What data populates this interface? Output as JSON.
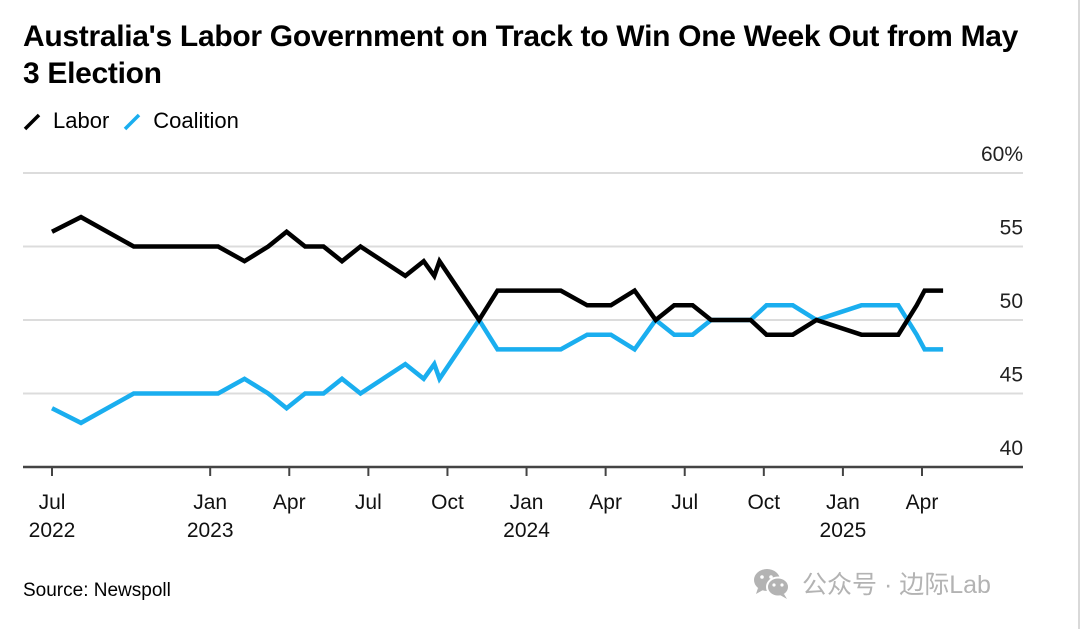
{
  "title": "Australia's Labor Government on Track to Win One Week Out from May 3 Election",
  "legend": [
    {
      "label": "Labor",
      "color": "#000000"
    },
    {
      "label": "Coalition",
      "color": "#1aaeef"
    }
  ],
  "source": "Source: Newspoll",
  "watermark": "公众号 · 边际Lab",
  "chart_data": {
    "type": "line",
    "title": "Australia's Labor Government on Track to Win One Week Out from May 3 Election",
    "xlabel": "",
    "ylabel": "",
    "x_unit": "months since Jul 2022",
    "ylim": [
      40,
      60
    ],
    "y_ticks": [
      {
        "value": 60,
        "label": "60%"
      },
      {
        "value": 55,
        "label": "55"
      },
      {
        "value": 50,
        "label": "50"
      },
      {
        "value": 45,
        "label": "45"
      },
      {
        "value": 40,
        "label": "40"
      }
    ],
    "x_ticks": [
      {
        "value": 0,
        "label": "Jul",
        "year": "2022"
      },
      {
        "value": 6,
        "label": "Jan",
        "year": "2023"
      },
      {
        "value": 9,
        "label": "Apr",
        "year": ""
      },
      {
        "value": 12,
        "label": "Jul",
        "year": ""
      },
      {
        "value": 15,
        "label": "Oct",
        "year": ""
      },
      {
        "value": 18,
        "label": "Jan",
        "year": "2024"
      },
      {
        "value": 21,
        "label": "Apr",
        "year": ""
      },
      {
        "value": 24,
        "label": "Jul",
        "year": ""
      },
      {
        "value": 27,
        "label": "Oct",
        "year": ""
      },
      {
        "value": 30,
        "label": "Jan",
        "year": "2025"
      },
      {
        "value": 33,
        "label": "Apr",
        "year": ""
      }
    ],
    "xlim": [
      -1.1,
      35.5
    ],
    "grid": true,
    "legend_position": "top-left",
    "series": [
      {
        "name": "Labor",
        "color": "#000000",
        "x": [
          0,
          1.1,
          3.1,
          6.3,
          7.3,
          8.2,
          8.9,
          9.6,
          10.3,
          11.0,
          11.7,
          13.4,
          14.1,
          14.5,
          14.7,
          16.2,
          16.9,
          19.3,
          20.3,
          21.2,
          22.1,
          22.9,
          23.6,
          24.3,
          25.0,
          26.5,
          27.1,
          28.1,
          29.0,
          30.7,
          32.1,
          32.8,
          33.1,
          33.8
        ],
        "y": [
          56,
          57,
          55,
          55,
          54,
          55,
          56,
          55,
          55,
          54,
          55,
          53,
          54,
          53,
          54,
          50,
          52,
          52,
          51,
          51,
          52,
          50,
          51,
          51,
          50,
          50,
          49,
          49,
          50,
          49,
          49,
          51,
          52,
          52
        ]
      },
      {
        "name": "Coalition",
        "color": "#1aaeef",
        "x": [
          0,
          1.1,
          3.1,
          6.3,
          7.3,
          8.2,
          8.9,
          9.6,
          10.3,
          11.0,
          11.7,
          13.4,
          14.1,
          14.5,
          14.7,
          16.2,
          16.9,
          19.3,
          20.3,
          21.2,
          22.1,
          22.9,
          23.6,
          24.3,
          25.0,
          26.5,
          27.1,
          28.1,
          29.0,
          30.7,
          32.1,
          32.8,
          33.1,
          33.8
        ],
        "y": [
          44,
          43,
          45,
          45,
          46,
          45,
          44,
          45,
          45,
          46,
          45,
          47,
          46,
          47,
          46,
          50,
          48,
          48,
          49,
          49,
          48,
          50,
          49,
          49,
          50,
          50,
          51,
          51,
          50,
          51,
          51,
          49,
          48,
          48
        ]
      }
    ]
  }
}
